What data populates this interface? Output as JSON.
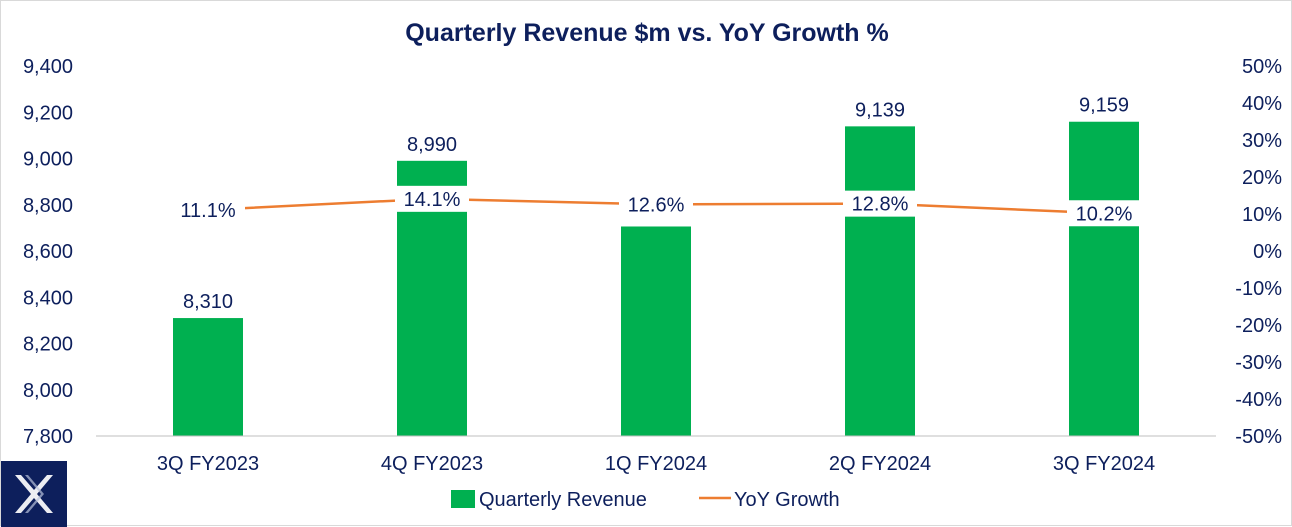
{
  "chart_data": {
    "type": "bar",
    "title": "Quarterly  Revenue $m vs. YoY Growth %",
    "categories": [
      "3Q FY2023",
      "4Q FY2023",
      "1Q FY2024",
      "2Q FY2024",
      "3Q FY2024"
    ],
    "series": [
      {
        "name": "Quarterly Revenue",
        "type": "bar",
        "axis": "left",
        "values": [
          8310,
          8990,
          8706,
          9139,
          9159
        ],
        "labels": [
          "8,310",
          "8,990",
          "",
          "9,139",
          "9,159"
        ]
      },
      {
        "name": "YoY Growth",
        "type": "line",
        "axis": "right",
        "values": [
          11.1,
          14.1,
          12.6,
          12.8,
          10.2
        ],
        "labels": [
          "11.1%",
          "14.1%",
          "12.6%",
          "12.8%",
          "10.2%"
        ]
      }
    ],
    "y_left": {
      "ylim": [
        7800,
        9400
      ],
      "ticks": [
        7800,
        8000,
        8200,
        8400,
        8600,
        8800,
        9000,
        9200,
        9400
      ],
      "tick_labels": [
        "7,800",
        "8,000",
        "8,200",
        "8,400",
        "8,600",
        "8,800",
        "9,000",
        "9,200",
        "9,400"
      ]
    },
    "y_right": {
      "ylim": [
        -50,
        50
      ],
      "ticks": [
        -50,
        -40,
        -30,
        -20,
        -10,
        0,
        10,
        20,
        30,
        40,
        50
      ],
      "tick_labels": [
        "-50%",
        "-40%",
        "-30%",
        "-20%",
        "-10%",
        "0%",
        "10%",
        "20%",
        "30%",
        "40%",
        "50%"
      ]
    },
    "legend": {
      "position": "bottom",
      "entries": [
        "Quarterly Revenue",
        "YoY Growth"
      ]
    },
    "grid": false,
    "xlabel": "",
    "ylabel": ""
  },
  "colors": {
    "bar": "#00b050",
    "line": "#ed7d31",
    "text": "#0d1f5c",
    "axis": "#bfbfbf",
    "logo_bg": "#0d1f5c"
  },
  "logo": {
    "icon": "x-logo-icon"
  }
}
